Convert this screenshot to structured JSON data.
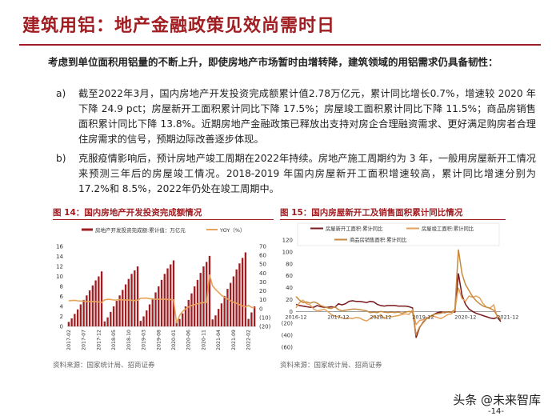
{
  "page": {
    "title": "建筑用铝：地产金融政策见效尚需时日",
    "lead": "考虑到单位面积用铝量的不断上升，即使房地产市场暂时由增转降，建筑领域的用铝需求仍具备韧性：",
    "items": [
      {
        "mark": "a)",
        "text": "截至2022年3月，国内房地产开发投资完成额累计值2.78万亿元，累计同比增长0.7%，增速较 2020 年下降 24.9 pct；房屋新开工面积累计同比下降 17.5%；房屋竣工面积累计同比下降 11.5%；商品房销售面积累计同比下降 13.8%。近期房地产金融政策已释放出支持对房企合理融资需求、更好满足购房者合理住房需求的信号，预期边际改善逐步体现。"
      },
      {
        "mark": "b)",
        "text": "克服疫情影响后，预计房地产竣工周期在2022年持续。房地产施工周期约为 3 年，一般用房屋新开工情况来预测三年后的房屋竣工情况。2018-2019 年国内房屋新开工面积增速较高，累计同比增速分别为 17.2%和 8.5%，2022年仍处在竣工周期中。"
      }
    ],
    "footer_brand": "头条 @未来智库",
    "page_number": "-14-"
  },
  "figures": [
    {
      "title": "图 14：国内房地产开发投资完成额情况",
      "source": "资料来源：国家统计局、招商证券"
    },
    {
      "title": "图 15：国内房屋新开工及销售面积累计同比情况",
      "source": "资料来源：国家统计局、招商证券"
    }
  ],
  "chart_data": [
    {
      "type": "bar",
      "legend": [
        "房地产开发投资完成额:累计值：万亿元",
        "YOY（%）"
      ],
      "colors": {
        "bar": "#a01d22",
        "line": "#e8a35a"
      },
      "y_left_ticks": [
        "0",
        "2",
        "4",
        "6",
        "8",
        "10",
        "12",
        "14",
        "16"
      ],
      "y_right_ticks": [
        "(20)",
        "(10)",
        "0",
        "10",
        "20",
        "30",
        "40",
        "50",
        "60",
        "70"
      ],
      "x_labels": [
        "2017-02",
        "2017-07",
        "2017-12",
        "2018-05",
        "2018-10",
        "2019-03",
        "2019-08",
        "2020-01",
        "2020-06",
        "2020-11",
        "2021-04",
        "2021-09",
        "2022-02"
      ],
      "ylim_left": [
        0,
        16
      ],
      "ylim_right": [
        -20,
        70
      ],
      "series": [
        {
          "name": "房地产开发投资完成额:累计值：万亿元",
          "values": [
            0.9,
            1.6,
            2.5,
            3.4,
            4.4,
            5.3,
            6.2,
            7.2,
            8.2,
            9.2,
            10.0,
            11.0,
            1.0,
            1.8,
            2.9,
            4.0,
            5.1,
            6.2,
            7.3,
            8.4,
            9.5,
            10.5,
            11.2,
            12.0,
            1.1,
            2.0,
            3.2,
            4.4,
            5.6,
            6.8,
            8.0,
            9.3,
            10.5,
            11.6,
            12.4,
            13.2,
            1.0,
            1.5,
            2.6,
            4.0,
            5.3,
            6.6,
            8.0,
            9.3,
            10.7,
            12.0,
            12.9,
            14.1,
            1.4,
            2.2,
            3.5,
            4.6,
            6.1,
            7.5,
            8.7,
            10.0,
            11.4,
            12.6,
            13.7,
            14.8,
            1.5,
            2.8,
            4.0
          ]
        },
        {
          "name": "YOY（%）",
          "values": [
            8.9,
            9.1,
            9.3,
            8.8,
            8.5,
            8.5,
            7.9,
            7.9,
            8.1,
            7.8,
            7.5,
            7.0,
            9.9,
            10.4,
            10.3,
            9.7,
            9.7,
            10.1,
            9.9,
            9.6,
            9.7,
            9.4,
            9.1,
            9.5,
            11.6,
            11.8,
            11.9,
            11.2,
            10.9,
            10.5,
            10.6,
            10.5,
            10.5,
            10.3,
            10.2,
            9.9,
            -16.3,
            -7.7,
            -3.3,
            -0.3,
            1.9,
            3.4,
            4.6,
            5.6,
            6.3,
            6.8,
            7.0,
            38.3,
            25.6,
            21.6,
            18.3,
            15.0,
            12.7,
            10.9,
            8.8,
            7.2,
            6.0,
            4.4,
            3.0,
            2.0,
            3.7,
            1.5,
            0.7
          ]
        }
      ]
    },
    {
      "type": "line",
      "legend": [
        "房屋新开工面积:累计同比",
        "房屋竣工面积:累计同比",
        "商品房销售面积:累计同比"
      ],
      "colors": [
        "#7a1a1f",
        "#e3a15c",
        "#c6893f"
      ],
      "y_ticks": [
        "120",
        "100",
        "80",
        "60",
        "40",
        "20",
        "0",
        "(20)",
        "(40)",
        "(60)"
      ],
      "x_labels": [
        "2016-12",
        "2017-12",
        "2018-12",
        "2019-12",
        "2020-12",
        "2021-12"
      ],
      "ylim": [
        -60,
        120
      ],
      "series": [
        {
          "name": "房屋新开工面积:累计同比",
          "values": [
            12,
            10,
            9,
            8,
            7,
            7,
            10,
            8,
            7,
            7,
            8,
            7,
            13,
            11,
            13,
            17,
            18,
            17,
            17,
            16,
            15,
            17,
            16,
            12,
            10,
            9,
            10,
            10,
            10,
            9,
            9,
            9,
            8,
            6,
            -44,
            -27,
            -18,
            -12,
            -9,
            -5,
            -2,
            -1,
            -2,
            -1,
            -1,
            -1,
            64,
            28,
            12,
            4,
            0,
            -3,
            -5,
            -7,
            -9,
            -11,
            -12,
            -10,
            -17
          ]
        },
        {
          "name": "房屋竣工面积:累计同比",
          "values": [
            6,
            15,
            19,
            13,
            11,
            4,
            1,
            2,
            4,
            0,
            -5,
            -8,
            -9,
            -11,
            -12,
            -11,
            -12,
            -10,
            -11,
            -14,
            -16,
            -12,
            -8,
            -11,
            -5,
            -12,
            -8,
            -9,
            -8,
            -7,
            -5,
            -4,
            -5,
            3,
            -22,
            -15,
            -14,
            -11,
            -9,
            -8,
            -10,
            -12,
            -9,
            -5,
            -4,
            2,
            40,
            22,
            17,
            26,
            24,
            26,
            23,
            13,
            7,
            6,
            11,
            -10,
            -12
          ]
        },
        {
          "name": "商品房销售面积:累计同比",
          "values": [
            25,
            19,
            15,
            16,
            14,
            16,
            14,
            10,
            8,
            6,
            5,
            8,
            3,
            1,
            2,
            3,
            4,
            4,
            3,
            2,
            1,
            -2,
            -1,
            -2,
            0,
            -1,
            -2,
            -1,
            -2,
            -1,
            -3,
            -1,
            0,
            -1,
            -39,
            -26,
            -19,
            -12,
            -8,
            -5,
            -4,
            -3,
            -1,
            -1,
            -1,
            3,
            104,
            64,
            45,
            35,
            25,
            18,
            13,
            9,
            7,
            5,
            2,
            -7,
            -14
          ]
        }
      ]
    }
  ]
}
